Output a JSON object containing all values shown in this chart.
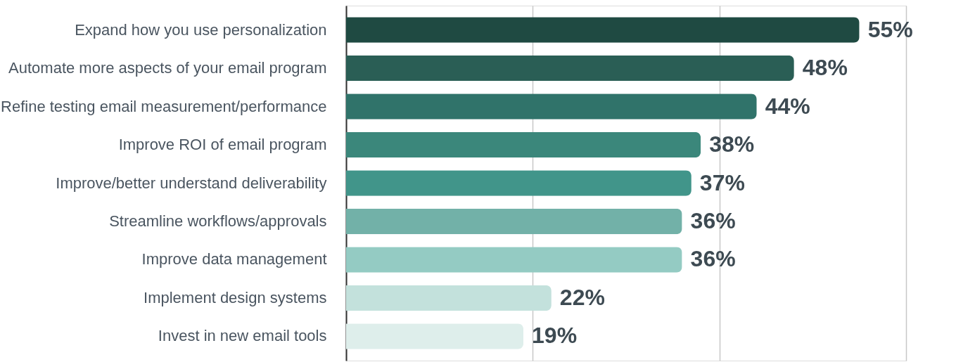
{
  "chart_data": {
    "type": "bar",
    "orientation": "horizontal",
    "categories": [
      "Expand how you use personalization",
      "Automate more aspects of your email program",
      "Refine testing email measurement/performance",
      "Improve ROI of email program",
      "Improve/better understand deliverability",
      "Streamline workflows/approvals",
      "Improve data management",
      "Implement design systems",
      "Invest in new email tools"
    ],
    "values": [
      55,
      48,
      44,
      38,
      37,
      36,
      36,
      22,
      19
    ],
    "colors": [
      "#1f4a42",
      "#2a5e55",
      "#30736a",
      "#3b877b",
      "#41958a",
      "#72b1a8",
      "#94cbc3",
      "#c3e1dc",
      "#deeeeb"
    ],
    "xlim": [
      0,
      60
    ],
    "xticks": [
      {
        "value": 0,
        "label": null
      },
      {
        "value": 20,
        "label": null
      },
      {
        "value": 40,
        "label": null
      },
      {
        "value": 60,
        "label": null
      }
    ],
    "value_labels": [
      "55%",
      "48%",
      "44%",
      "38%",
      "37%",
      "36%",
      "36%",
      "22%",
      "19%"
    ],
    "grid": "x",
    "tick_labels": "y"
  }
}
